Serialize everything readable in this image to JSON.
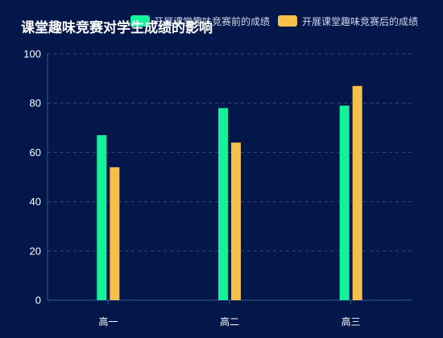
{
  "chart_data": {
    "type": "bar",
    "title": "课堂趣味竞赛对学生成绩的影响",
    "categories": [
      "高一",
      "高二",
      "高三"
    ],
    "series": [
      {
        "name": "开展课堂趣味竞赛前的成绩",
        "color": "#13f29a",
        "values": [
          67,
          78,
          79
        ]
      },
      {
        "name": "开展课堂趣味竞赛后的成绩",
        "color": "#f5c04a",
        "values": [
          54,
          64,
          87
        ]
      }
    ],
    "ylim": [
      0,
      100
    ],
    "yticks": [
      0,
      20,
      40,
      60,
      80,
      100
    ],
    "xlabel": "",
    "ylabel": "",
    "grid": true,
    "legend_position": "top-right"
  },
  "colors": {
    "background": "#03174a",
    "grid": "#2e4a7a",
    "axis": "#3a5a8c"
  }
}
